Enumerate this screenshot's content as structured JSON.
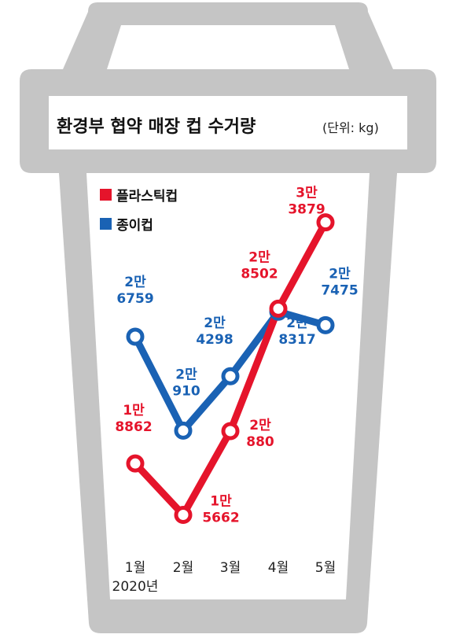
{
  "chart_data": {
    "type": "line",
    "title": "환경부 협약 매장 컵 수거량",
    "unit": "(단위: kg)",
    "categories": [
      "1월",
      "2월",
      "3월",
      "4월",
      "5월"
    ],
    "year_label": "2020년",
    "series": [
      {
        "name": "플라스틱컵",
        "color": "#e5142b",
        "values": [
          18862,
          15662,
          20880,
          28502,
          33879
        ],
        "labels": [
          [
            "1만",
            "8862"
          ],
          [
            "1만",
            "5662"
          ],
          [
            "2만",
            "880"
          ],
          [
            "2만",
            "8502"
          ],
          [
            "3만",
            "3879"
          ]
        ]
      },
      {
        "name": "종이컵",
        "color": "#1a62b4",
        "values": [
          26759,
          20910,
          24298,
          28317,
          27475
        ],
        "labels": [
          [
            "2만",
            "6759"
          ],
          [
            "2만",
            "910"
          ],
          [
            "2만",
            "4298"
          ],
          [
            "2만",
            "8317"
          ],
          [
            "2만",
            "7475"
          ]
        ]
      }
    ],
    "ylim": [
      15000,
      34500
    ],
    "grid": false,
    "legend_position": "top-left"
  },
  "colors": {
    "cup_gray": "#c5c5c5",
    "background": "#ffffff"
  }
}
